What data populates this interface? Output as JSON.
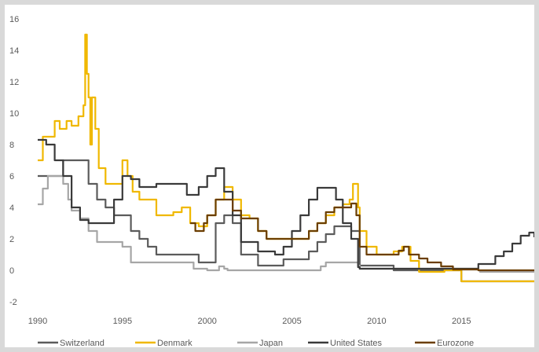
{
  "chart_data": {
    "type": "line",
    "title": "",
    "xlabel": "",
    "ylabel": "",
    "xlim": [
      1990,
      2019.3
    ],
    "ylim": [
      -2,
      16
    ],
    "y_ticks": [
      "-2",
      "0",
      "2",
      "4",
      "6",
      "8",
      "10",
      "12",
      "14",
      "16"
    ],
    "x_ticks": [
      "1990",
      "1995",
      "2000",
      "2005",
      "2010",
      "2015"
    ],
    "grid": "none",
    "legend": "bottom",
    "series": [
      {
        "name": "Switzerland",
        "color": "#5b5b5b",
        "points": [
          [
            1990,
            6
          ],
          [
            1990.5,
            6
          ],
          [
            1991,
            6
          ],
          [
            1991.5,
            7
          ],
          [
            1992,
            7
          ],
          [
            1992.5,
            7
          ],
          [
            1993,
            5.5
          ],
          [
            1993.5,
            4.5
          ],
          [
            1994,
            4
          ],
          [
            1994.5,
            3.5
          ],
          [
            1995,
            3.5
          ],
          [
            1995.5,
            2.5
          ],
          [
            1996,
            2
          ],
          [
            1996.5,
            1.5
          ],
          [
            1997,
            1
          ],
          [
            1998,
            1
          ],
          [
            1999,
            1
          ],
          [
            1999.5,
            0.5
          ],
          [
            2000,
            0.5
          ],
          [
            2000.5,
            3
          ],
          [
            2001,
            3.5
          ],
          [
            2001.5,
            3
          ],
          [
            2002,
            1
          ],
          [
            2003,
            0.3
          ],
          [
            2004,
            0.3
          ],
          [
            2004.5,
            0.7
          ],
          [
            2005,
            0.7
          ],
          [
            2006,
            1.2
          ],
          [
            2006.5,
            1.8
          ],
          [
            2007,
            2.3
          ],
          [
            2007.5,
            2.8
          ],
          [
            2008,
            2.8
          ],
          [
            2008.5,
            2.5
          ],
          [
            2009,
            0.3
          ],
          [
            2010,
            0.3
          ],
          [
            2011,
            0
          ],
          [
            2014.9,
            0
          ],
          [
            2015,
            -0.7
          ],
          [
            2019.3,
            -0.7
          ]
        ]
      },
      {
        "name": "Denmark",
        "color": "#f0b800",
        "points": [
          [
            1990,
            7
          ],
          [
            1990.3,
            8.5
          ],
          [
            1991,
            9.5
          ],
          [
            1991.3,
            9
          ],
          [
            1991.7,
            9.5
          ],
          [
            1992,
            9.2
          ],
          [
            1992.4,
            9.8
          ],
          [
            1992.7,
            10.5
          ],
          [
            1992.8,
            15
          ],
          [
            1992.9,
            12.5
          ],
          [
            1993,
            11
          ],
          [
            1993.1,
            8
          ],
          [
            1993.2,
            11
          ],
          [
            1993.4,
            9
          ],
          [
            1993.6,
            6.5
          ],
          [
            1994,
            5.5
          ],
          [
            1994.5,
            5.5
          ],
          [
            1995,
            7
          ],
          [
            1995.3,
            6
          ],
          [
            1995.6,
            5
          ],
          [
            1996,
            4.5
          ],
          [
            1997,
            3.5
          ],
          [
            1998,
            3.7
          ],
          [
            1998.5,
            4
          ],
          [
            1999,
            3
          ],
          [
            1999.5,
            2.8
          ],
          [
            2000,
            3.5
          ],
          [
            2000.5,
            4.5
          ],
          [
            2001,
            5.3
          ],
          [
            2001.5,
            4.5
          ],
          [
            2002,
            3.5
          ],
          [
            2002.5,
            3.3
          ],
          [
            2003,
            2.5
          ],
          [
            2003.5,
            2
          ],
          [
            2005,
            2
          ],
          [
            2006,
            2.5
          ],
          [
            2006.5,
            3
          ],
          [
            2007,
            3.5
          ],
          [
            2007.5,
            4
          ],
          [
            2008,
            4.2
          ],
          [
            2008.4,
            4.5
          ],
          [
            2008.6,
            5.5
          ],
          [
            2008.9,
            4
          ],
          [
            2009,
            2.5
          ],
          [
            2009.4,
            1.5
          ],
          [
            2010,
            1
          ],
          [
            2011,
            1.2
          ],
          [
            2011.5,
            1.5
          ],
          [
            2012,
            0.6
          ],
          [
            2012.5,
            -0.1
          ],
          [
            2013,
            -0.1
          ],
          [
            2014,
            0
          ],
          [
            2014.9,
            0
          ],
          [
            2015,
            -0.7
          ],
          [
            2019.3,
            -0.7
          ]
        ]
      },
      {
        "name": "Japan",
        "color": "#a6a6a6",
        "points": [
          [
            1990,
            4.2
          ],
          [
            1990.3,
            5.2
          ],
          [
            1990.6,
            6
          ],
          [
            1991,
            6
          ],
          [
            1991.5,
            5.5
          ],
          [
            1991.8,
            4.5
          ],
          [
            1992,
            3.8
          ],
          [
            1992.5,
            3.3
          ],
          [
            1993,
            2.5
          ],
          [
            1993.5,
            1.8
          ],
          [
            1994,
            1.8
          ],
          [
            1995,
            1.5
          ],
          [
            1995.5,
            0.5
          ],
          [
            1996,
            0.5
          ],
          [
            1999,
            0.5
          ],
          [
            1999.2,
            0.1
          ],
          [
            2000,
            0
          ],
          [
            2000.5,
            0
          ],
          [
            2000.7,
            0.25
          ],
          [
            2001,
            0.1
          ],
          [
            2001.2,
            0
          ],
          [
            2006.5,
            0
          ],
          [
            2006.7,
            0.25
          ],
          [
            2007,
            0.5
          ],
          [
            2008,
            0.5
          ],
          [
            2008.9,
            0.3
          ],
          [
            2009,
            0.1
          ],
          [
            2016,
            0
          ],
          [
            2016.1,
            -0.1
          ],
          [
            2019.3,
            -0.1
          ]
        ]
      },
      {
        "name": "United States",
        "color": "#3a3a3a",
        "points": [
          [
            1990,
            8.3
          ],
          [
            1990.5,
            8
          ],
          [
            1991,
            7
          ],
          [
            1991.5,
            6
          ],
          [
            1992,
            4
          ],
          [
            1992.5,
            3.2
          ],
          [
            1993,
            3
          ],
          [
            1994,
            3
          ],
          [
            1994.5,
            4.5
          ],
          [
            1995,
            6
          ],
          [
            1995.5,
            5.8
          ],
          [
            1996,
            5.3
          ],
          [
            1997,
            5.5
          ],
          [
            1998,
            5.5
          ],
          [
            1998.8,
            4.8
          ],
          [
            1999,
            4.8
          ],
          [
            1999.5,
            5.3
          ],
          [
            2000,
            6
          ],
          [
            2000.5,
            6.5
          ],
          [
            2001,
            5
          ],
          [
            2001.5,
            3.5
          ],
          [
            2002,
            1.8
          ],
          [
            2003,
            1.2
          ],
          [
            2004,
            1
          ],
          [
            2004.5,
            1.5
          ],
          [
            2005,
            2.5
          ],
          [
            2005.5,
            3.5
          ],
          [
            2006,
            4.5
          ],
          [
            2006.5,
            5.25
          ],
          [
            2007,
            5.25
          ],
          [
            2007.6,
            4.5
          ],
          [
            2008,
            3
          ],
          [
            2008.5,
            2
          ],
          [
            2008.9,
            0.2
          ],
          [
            2009,
            0.1
          ],
          [
            2015.9,
            0.1
          ],
          [
            2016,
            0.4
          ],
          [
            2017,
            0.9
          ],
          [
            2017.5,
            1.2
          ],
          [
            2018,
            1.7
          ],
          [
            2018.5,
            2.2
          ],
          [
            2019,
            2.4
          ],
          [
            2019.3,
            2.1
          ]
        ]
      },
      {
        "name": "Eurozone",
        "color": "#6b3e00",
        "points": [
          [
            1999,
            3
          ],
          [
            1999.3,
            2.5
          ],
          [
            1999.8,
            3
          ],
          [
            2000,
            3.5
          ],
          [
            2000.5,
            4.5
          ],
          [
            2001,
            4.5
          ],
          [
            2001.5,
            3.8
          ],
          [
            2002,
            3.3
          ],
          [
            2003,
            2.5
          ],
          [
            2003.5,
            2
          ],
          [
            2005,
            2
          ],
          [
            2006,
            2.5
          ],
          [
            2006.5,
            3
          ],
          [
            2007,
            3.7
          ],
          [
            2007.5,
            4
          ],
          [
            2008,
            4
          ],
          [
            2008.5,
            4.25
          ],
          [
            2008.8,
            3.5
          ],
          [
            2009,
            1.5
          ],
          [
            2009.4,
            1
          ],
          [
            2011,
            1
          ],
          [
            2011.3,
            1.25
          ],
          [
            2011.6,
            1.5
          ],
          [
            2011.9,
            1
          ],
          [
            2012.5,
            0.75
          ],
          [
            2013,
            0.5
          ],
          [
            2013.8,
            0.25
          ],
          [
            2014.5,
            0.05
          ],
          [
            2016,
            0
          ],
          [
            2019.3,
            0
          ]
        ]
      }
    ]
  }
}
